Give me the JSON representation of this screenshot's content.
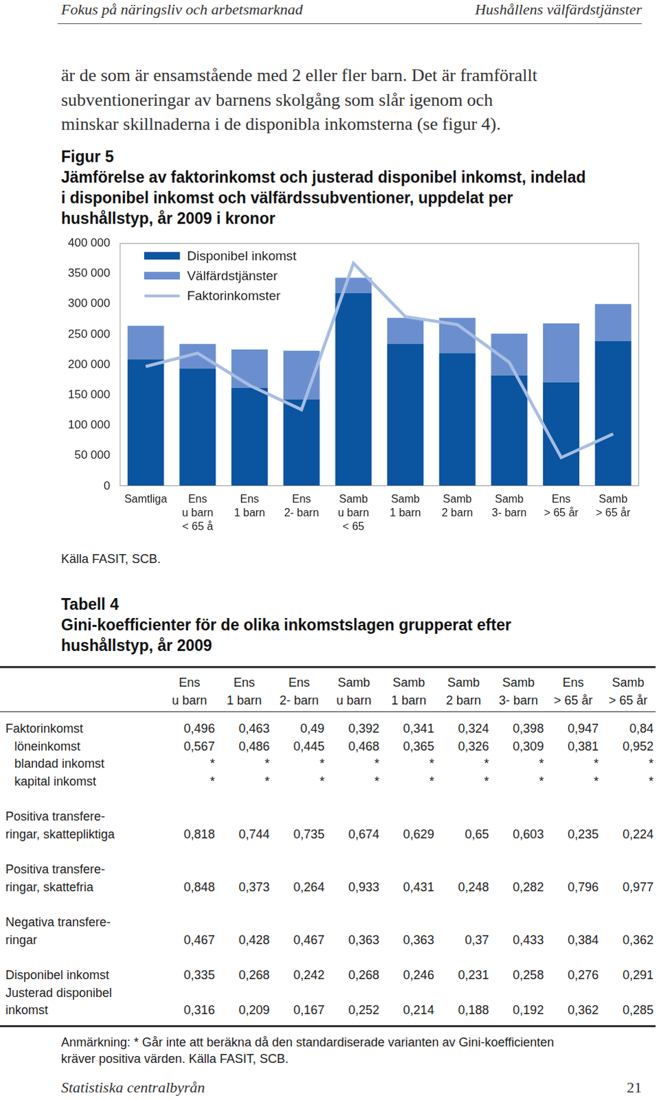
{
  "header": {
    "left": "Fokus på näringsliv och arbetsmarknad",
    "right": "Hushållens välfärdstjänster"
  },
  "text": [
    "är de som är ensamstående med 2 eller fler barn. Det är framförallt",
    "subventioneringar av barnens skolgång som slår igenom och",
    "minskar skillnaderna i de disponibla inkomsterna (se figur 4)."
  ],
  "figure": {
    "title": [
      "Figur 5",
      "Jämförelse av faktorinkomst och justerad disponibel inkomst, indelad",
      "i disponibel inkomst och välfärdssubventioner, uppdelat per",
      "hushållstyp, år 2009 i kronor"
    ],
    "source": "Källa FASIT, SCB."
  },
  "chart_data": {
    "type": "bar",
    "stacked": true,
    "grid": false,
    "legend": "top-left",
    "categories": [
      [
        "Samtliga"
      ],
      [
        "Ens",
        "u barn",
        "< 65 å"
      ],
      [
        "Ens",
        "1 barn"
      ],
      [
        "Ens",
        "2- barn"
      ],
      [
        "Samb",
        "u barn",
        "< 65"
      ],
      [
        "Samb",
        "1 barn"
      ],
      [
        "Samb",
        "2 barn"
      ],
      [
        "Samb",
        "3- barn"
      ],
      [
        "Ens",
        "> 65 år"
      ],
      [
        "Samb",
        "> 65 år"
      ]
    ],
    "series": [
      {
        "name": "Disponibel inkomst",
        "type": "bar",
        "color": "#0b54a0",
        "values": [
          209000,
          194000,
          162000,
          143000,
          318000,
          234000,
          219000,
          182000,
          171000,
          239000
        ]
      },
      {
        "name": "Välfärdstjänster",
        "type": "bar",
        "color": "#6b8fce",
        "values": [
          55000,
          40000,
          63000,
          80000,
          25000,
          43000,
          58000,
          69000,
          97000,
          61000
        ]
      },
      {
        "name": "Faktorinkomster",
        "type": "line",
        "color": "#a8bde4",
        "values": [
          197000,
          219000,
          166000,
          126000,
          367000,
          279000,
          266000,
          204000,
          47000,
          86000
        ]
      }
    ],
    "ylim": [
      0,
      400000
    ],
    "yticks": [
      0,
      {
        "value": 50000,
        "label": "50 000"
      },
      {
        "value": 100000,
        "label": "100 000"
      },
      {
        "value": 150000,
        "label": "150 000"
      },
      {
        "value": 200000,
        "label": "200 000"
      },
      {
        "value": 250000,
        "label": "250 000"
      },
      {
        "value": 300000,
        "label": "300 000"
      },
      {
        "value": 350000,
        "label": "350 000"
      },
      {
        "value": 400000,
        "label": "400 000"
      }
    ]
  },
  "table": {
    "title": [
      "Tabell 4",
      "Gini-koefficienter för de olika inkomstslagen grupperat efter",
      "hushållstyp, år 2009"
    ],
    "columns": [
      [
        "Ens",
        "u barn"
      ],
      [
        "Ens",
        "1 barn"
      ],
      [
        "Ens",
        "2- barn"
      ],
      [
        "Samb",
        "u barn"
      ],
      [
        "Samb",
        "1 barn"
      ],
      [
        "Samb",
        "2 barn"
      ],
      [
        "Samb",
        "3- barn"
      ],
      [
        "Ens",
        "> 65 år"
      ],
      [
        "Samb",
        "> 65 år"
      ]
    ],
    "groups": [
      [
        {
          "label": [
            "Faktorinkomst"
          ],
          "values": [
            "0,496",
            "0,463",
            "0,49",
            "0,392",
            "0,341",
            "0,324",
            "0,398",
            "0,947",
            "0,84"
          ],
          "sub_rows": [
            {
              "label": [
                "löneinkomst"
              ],
              "values": [
                "0,567",
                "0,486",
                "0,445",
                "0,468",
                "0,365",
                "0,326",
                "0,309",
                "0,381",
                "0,952"
              ]
            },
            {
              "label": [
                "blandad inkomst"
              ],
              "values": [
                "*",
                "*",
                "*",
                "*",
                "*",
                "*",
                "*",
                "*",
                "*"
              ]
            },
            {
              "label": [
                "kapital inkomst"
              ],
              "values": [
                "*",
                "*",
                "*",
                "*",
                "*",
                "*",
                "*",
                "*",
                "*"
              ]
            }
          ]
        }
      ],
      [
        {
          "label": [
            "Positiva transfere-",
            "ringar, skattepliktiga"
          ],
          "values": [
            "0,818",
            "0,744",
            "0,735",
            "0,674",
            "0,629",
            "0,65",
            "0,603",
            "0,235",
            "0,224"
          ]
        }
      ],
      [
        {
          "label": [
            "Positiva transfere-",
            "ringar, skattefria"
          ],
          "values": [
            "0,848",
            "0,373",
            "0,264",
            "0,933",
            "0,431",
            "0,248",
            "0,282",
            "0,796",
            "0,977"
          ]
        }
      ],
      [
        {
          "label": [
            "Negativa transfere-",
            "ringar"
          ],
          "values": [
            "0,467",
            "0,428",
            "0,467",
            "0,363",
            "0,363",
            "0,37",
            "0,433",
            "0,384",
            "0,362"
          ]
        }
      ],
      [
        {
          "label": [
            "Disponibel inkomst"
          ],
          "values": [
            "0,335",
            "0,268",
            "0,242",
            "0,268",
            "0,246",
            "0,231",
            "0,258",
            "0,276",
            "0,291"
          ]
        },
        {
          "label": [
            "Justerad disponibel",
            "inkomst"
          ],
          "values": [
            "0,316",
            "0,209",
            "0,167",
            "0,252",
            "0,214",
            "0,188",
            "0,192",
            "0,362",
            "0,285"
          ]
        }
      ]
    ],
    "note": [
      "Anmärkning: * Går inte att beräkna då den standardiserade varianten av Gini-koefficienten",
      "kräver positiva värden. Källa FASIT, SCB."
    ]
  },
  "footer": {
    "left": "Statistiska centralbyrån",
    "right": "21"
  }
}
